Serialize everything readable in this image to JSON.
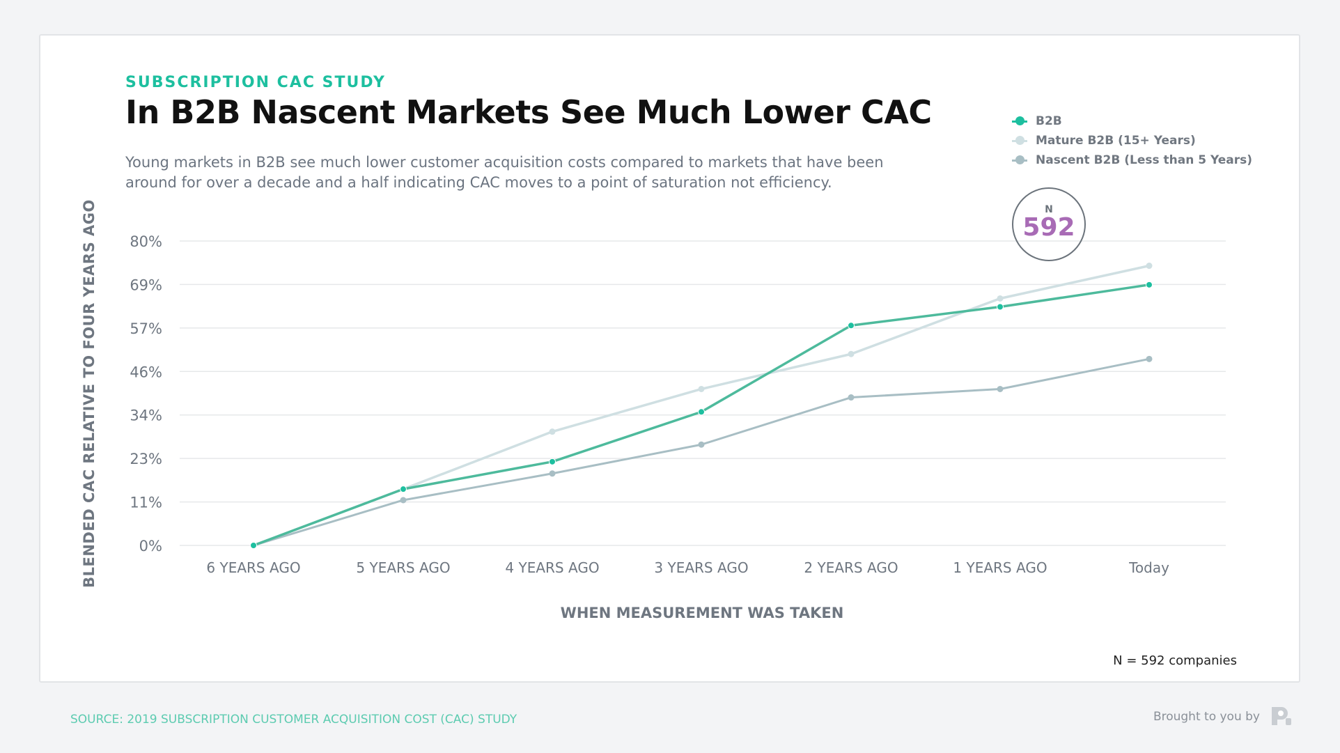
{
  "header": {
    "kicker": "SUBSCRIPTION CAC STUDY",
    "title": "In B2B Nascent Markets See Much Lower CAC",
    "subtitle": "Young markets in B2B see much lower customer acquisition costs compared to markets that have been around for over a decade and a half indicating CAC moves to a point of saturation not efficiency."
  },
  "badge": {
    "label": "N",
    "value": "592"
  },
  "footnote": "N = 592 companies",
  "source": "SOURCE: 2019 SUBSCRIPTION CUSTOMER ACQUISITION COST (CAC) STUDY",
  "brought_by": "Brought to you by",
  "colors": {
    "b2b": "#1dbf9f",
    "mature": "#cfdfe2",
    "nascent": "#a8bec4",
    "accent_badge": "#a86bb5"
  },
  "chart_data": {
    "type": "line",
    "xlabel": "WHEN MEASUREMENT WAS TAKEN",
    "ylabel": "BLENDED CAC RELATIVE TO FOUR YEARS AGO",
    "categories": [
      "6 YEARS AGO",
      "5 YEARS AGO",
      "4 YEARS AGO",
      "3 YEARS AGO",
      "2 YEARS AGO",
      "1 YEARS AGO",
      "Today"
    ],
    "yticks": [
      "0%",
      "11%",
      "23%",
      "34%",
      "46%",
      "57%",
      "69%",
      "80%"
    ],
    "ylim": [
      0,
      80
    ],
    "grid": true,
    "legend_position": "top-right",
    "series": [
      {
        "name": "B2B",
        "values": [
          0,
          14.8,
          22.0,
          35.1,
          57.8,
          62.7,
          68.5
        ]
      },
      {
        "name": "Mature B2B (15+ Years)",
        "values": [
          0,
          14.8,
          29.9,
          41.1,
          50.3,
          64.9,
          73.5
        ]
      },
      {
        "name": "Nascent B2B (Less than 5 Years)",
        "values": [
          0,
          11.9,
          18.9,
          26.5,
          38.9,
          41.1,
          49.0
        ]
      }
    ]
  }
}
